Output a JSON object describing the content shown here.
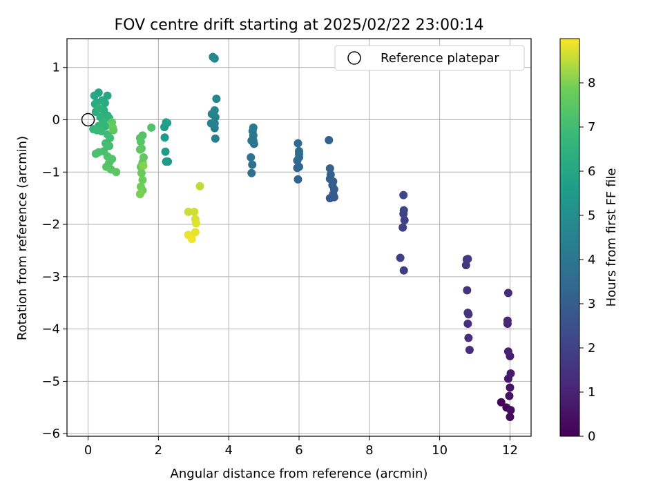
{
  "chart_data": {
    "type": "scatter",
    "title": "FOV centre drift starting at 2025/02/22 23:00:14",
    "xlabel": "Angular distance from reference (arcmin)",
    "ylabel": "Rotation from reference (arcmin)",
    "xlim": [
      -0.6,
      12.6
    ],
    "ylim": [
      -6.05,
      1.55
    ],
    "xticks": [
      0,
      2,
      4,
      6,
      8,
      10,
      12
    ],
    "yticks": [
      1,
      0,
      -1,
      -2,
      -3,
      -4,
      -5,
      -6
    ],
    "xtick_labels": [
      "0",
      "2",
      "4",
      "6",
      "8",
      "10",
      "12"
    ],
    "ytick_labels": [
      "1",
      "0",
      "−1",
      "−2",
      "−3",
      "−4",
      "−5",
      "−6"
    ],
    "grid": true,
    "legend": {
      "position": "top-right",
      "entries": [
        "Reference platepar"
      ]
    },
    "colorbar": {
      "label": "Hours from first FF file",
      "range": [
        0,
        9.0
      ],
      "ticks": [
        0,
        1,
        2,
        3,
        4,
        5,
        6,
        7,
        8
      ],
      "tick_labels": [
        "0",
        "1",
        "2",
        "3",
        "4",
        "5",
        "6",
        "7",
        "8"
      ],
      "colormap": "viridis"
    },
    "reference_point": {
      "x": 0,
      "y": 0,
      "label": "Reference platepar"
    },
    "points": [
      {
        "x": 11.75,
        "y": -5.4,
        "h": 0.05
      },
      {
        "x": 11.9,
        "y": -5.5,
        "h": 0.15
      },
      {
        "x": 12.0,
        "y": -5.68,
        "h": 0.25
      },
      {
        "x": 12.02,
        "y": -5.55,
        "h": 0.35
      },
      {
        "x": 11.98,
        "y": -5.28,
        "h": 0.45
      },
      {
        "x": 12.0,
        "y": -5.12,
        "h": 0.55
      },
      {
        "x": 11.95,
        "y": -4.95,
        "h": 0.65
      },
      {
        "x": 12.02,
        "y": -4.85,
        "h": 0.75
      },
      {
        "x": 12.0,
        "y": -4.52,
        "h": 0.85
      },
      {
        "x": 11.95,
        "y": -4.43,
        "h": 0.95
      },
      {
        "x": 11.93,
        "y": -3.9,
        "h": 1.05
      },
      {
        "x": 11.93,
        "y": -3.84,
        "h": 1.15
      },
      {
        "x": 11.95,
        "y": -3.31,
        "h": 1.25
      },
      {
        "x": 10.85,
        "y": -4.4,
        "h": 1.3
      },
      {
        "x": 10.82,
        "y": -4.17,
        "h": 1.35
      },
      {
        "x": 10.8,
        "y": -3.9,
        "h": 1.4
      },
      {
        "x": 10.82,
        "y": -3.72,
        "h": 1.45
      },
      {
        "x": 10.8,
        "y": -3.69,
        "h": 1.5
      },
      {
        "x": 10.78,
        "y": -3.26,
        "h": 1.55
      },
      {
        "x": 10.75,
        "y": -2.78,
        "h": 1.6
      },
      {
        "x": 10.77,
        "y": -2.67,
        "h": 1.65
      },
      {
        "x": 10.8,
        "y": -2.66,
        "h": 1.7
      },
      {
        "x": 8.98,
        "y": -2.88,
        "h": 1.85
      },
      {
        "x": 8.88,
        "y": -2.64,
        "h": 1.9
      },
      {
        "x": 8.95,
        "y": -2.06,
        "h": 1.95
      },
      {
        "x": 9.0,
        "y": -1.92,
        "h": 2.0
      },
      {
        "x": 8.97,
        "y": -1.8,
        "h": 2.05
      },
      {
        "x": 8.98,
        "y": -1.73,
        "h": 2.1
      },
      {
        "x": 8.97,
        "y": -1.44,
        "h": 2.15
      },
      {
        "x": 6.88,
        "y": -1.5,
        "h": 2.75
      },
      {
        "x": 7.0,
        "y": -1.48,
        "h": 2.8
      },
      {
        "x": 6.97,
        "y": -1.42,
        "h": 2.85
      },
      {
        "x": 7.0,
        "y": -1.33,
        "h": 2.9
      },
      {
        "x": 6.95,
        "y": -1.25,
        "h": 2.95
      },
      {
        "x": 6.97,
        "y": -1.18,
        "h": 3.0
      },
      {
        "x": 6.88,
        "y": -1.13,
        "h": 3.05
      },
      {
        "x": 6.9,
        "y": -1.05,
        "h": 3.1
      },
      {
        "x": 6.88,
        "y": -0.93,
        "h": 3.15
      },
      {
        "x": 6.85,
        "y": -0.39,
        "h": 3.2
      },
      {
        "x": 5.97,
        "y": -1.14,
        "h": 3.25
      },
      {
        "x": 5.95,
        "y": -0.92,
        "h": 3.3
      },
      {
        "x": 6.0,
        "y": -0.9,
        "h": 3.35
      },
      {
        "x": 5.95,
        "y": -0.78,
        "h": 3.4
      },
      {
        "x": 6.0,
        "y": -0.72,
        "h": 3.45
      },
      {
        "x": 6.0,
        "y": -0.65,
        "h": 3.5
      },
      {
        "x": 6.0,
        "y": -0.6,
        "h": 3.55
      },
      {
        "x": 5.97,
        "y": -0.45,
        "h": 3.6
      },
      {
        "x": 4.65,
        "y": -1.02,
        "h": 3.7
      },
      {
        "x": 4.67,
        "y": -0.86,
        "h": 3.75
      },
      {
        "x": 4.63,
        "y": -0.72,
        "h": 3.8
      },
      {
        "x": 4.72,
        "y": -0.46,
        "h": 3.85
      },
      {
        "x": 4.7,
        "y": -0.4,
        "h": 3.9
      },
      {
        "x": 4.65,
        "y": -0.4,
        "h": 3.95
      },
      {
        "x": 4.7,
        "y": -0.3,
        "h": 4.0
      },
      {
        "x": 4.68,
        "y": -0.22,
        "h": 4.05
      },
      {
        "x": 4.7,
        "y": -0.15,
        "h": 4.1
      },
      {
        "x": 3.62,
        "y": -0.36,
        "h": 4.3
      },
      {
        "x": 3.6,
        "y": -0.16,
        "h": 4.35
      },
      {
        "x": 3.6,
        "y": -0.07,
        "h": 4.4
      },
      {
        "x": 3.5,
        "y": -0.07,
        "h": 4.45
      },
      {
        "x": 3.62,
        "y": 0.05,
        "h": 4.5
      },
      {
        "x": 3.52,
        "y": 0.11,
        "h": 4.55
      },
      {
        "x": 3.6,
        "y": 0.18,
        "h": 4.6
      },
      {
        "x": 3.65,
        "y": 0.4,
        "h": 4.65
      },
      {
        "x": 3.55,
        "y": 1.2,
        "h": 4.7
      },
      {
        "x": 3.6,
        "y": 1.17,
        "h": 4.75
      },
      {
        "x": 2.22,
        "y": -0.8,
        "h": 5.4
      },
      {
        "x": 2.27,
        "y": -0.8,
        "h": 5.45
      },
      {
        "x": 2.2,
        "y": -0.61,
        "h": 5.5
      },
      {
        "x": 2.18,
        "y": -0.34,
        "h": 5.55
      },
      {
        "x": 2.17,
        "y": -0.14,
        "h": 5.6
      },
      {
        "x": 2.25,
        "y": -0.06,
        "h": 5.65
      },
      {
        "x": 2.22,
        "y": -0.05,
        "h": 5.7
      },
      {
        "x": 0.3,
        "y": 0.52,
        "h": 5.95
      },
      {
        "x": 0.55,
        "y": 0.46,
        "h": 6.0
      },
      {
        "x": 0.18,
        "y": 0.46,
        "h": 6.05
      },
      {
        "x": 0.4,
        "y": 0.37,
        "h": 6.1
      },
      {
        "x": 0.25,
        "y": 0.33,
        "h": 6.15
      },
      {
        "x": 0.2,
        "y": 0.3,
        "h": 6.2
      },
      {
        "x": 0.48,
        "y": 0.32,
        "h": 6.25
      },
      {
        "x": 0.22,
        "y": 0.15,
        "h": 6.3
      },
      {
        "x": 0.45,
        "y": 0.18,
        "h": 6.35
      },
      {
        "x": 0.55,
        "y": 0.08,
        "h": 6.4
      },
      {
        "x": 0.3,
        "y": 0.22,
        "h": 6.45
      },
      {
        "x": 0.35,
        "y": 0.05,
        "h": 6.5
      },
      {
        "x": 0.6,
        "y": 0.03,
        "h": 6.55
      },
      {
        "x": 0.42,
        "y": -0.05,
        "h": 6.6
      },
      {
        "x": 0.5,
        "y": -0.12,
        "h": 6.65
      },
      {
        "x": 0.3,
        "y": -0.12,
        "h": 6.7
      },
      {
        "x": 0.15,
        "y": -0.18,
        "h": 6.75
      },
      {
        "x": 0.25,
        "y": -0.2,
        "h": 6.8
      },
      {
        "x": 0.38,
        "y": -0.22,
        "h": 6.85
      },
      {
        "x": 0.55,
        "y": -0.28,
        "h": 6.9
      },
      {
        "x": 0.62,
        "y": -0.35,
        "h": 6.95
      },
      {
        "x": 0.5,
        "y": -0.45,
        "h": 7.0
      },
      {
        "x": 0.6,
        "y": -0.5,
        "h": 7.05
      },
      {
        "x": 0.45,
        "y": -0.6,
        "h": 7.1
      },
      {
        "x": 0.3,
        "y": -0.62,
        "h": 7.15
      },
      {
        "x": 0.22,
        "y": -0.65,
        "h": 7.2
      },
      {
        "x": 0.55,
        "y": -0.7,
        "h": 7.25
      },
      {
        "x": 0.68,
        "y": -0.75,
        "h": 7.3
      },
      {
        "x": 0.6,
        "y": -0.82,
        "h": 7.35
      },
      {
        "x": 0.52,
        "y": -0.9,
        "h": 7.4
      },
      {
        "x": 0.65,
        "y": -0.95,
        "h": 7.45
      },
      {
        "x": 0.8,
        "y": -1.0,
        "h": 7.5
      },
      {
        "x": 0.72,
        "y": -0.2,
        "h": 7.55
      },
      {
        "x": 0.68,
        "y": -0.05,
        "h": 7.6
      },
      {
        "x": 0.7,
        "y": -0.15,
        "h": 7.65
      },
      {
        "x": 1.8,
        "y": -0.15,
        "h": 7.3
      },
      {
        "x": 1.55,
        "y": -0.3,
        "h": 7.35
      },
      {
        "x": 1.48,
        "y": -0.35,
        "h": 7.4
      },
      {
        "x": 1.5,
        "y": -0.42,
        "h": 7.45
      },
      {
        "x": 1.52,
        "y": -0.55,
        "h": 7.5
      },
      {
        "x": 1.48,
        "y": -0.57,
        "h": 7.55
      },
      {
        "x": 1.58,
        "y": -0.72,
        "h": 7.6
      },
      {
        "x": 1.55,
        "y": -0.82,
        "h": 7.65
      },
      {
        "x": 1.5,
        "y": -0.9,
        "h": 7.7
      },
      {
        "x": 1.52,
        "y": -1.02,
        "h": 7.75
      },
      {
        "x": 1.55,
        "y": -1.15,
        "h": 7.8
      },
      {
        "x": 1.5,
        "y": -1.28,
        "h": 7.85
      },
      {
        "x": 1.55,
        "y": -1.35,
        "h": 7.9
      },
      {
        "x": 1.48,
        "y": -1.42,
        "h": 7.95
      },
      {
        "x": 1.57,
        "y": -0.88,
        "h": 8.05
      },
      {
        "x": 3.18,
        "y": -1.27,
        "h": 8.5
      },
      {
        "x": 2.85,
        "y": -1.76,
        "h": 8.6
      },
      {
        "x": 3.02,
        "y": -1.76,
        "h": 8.65
      },
      {
        "x": 3.05,
        "y": -1.9,
        "h": 8.7
      },
      {
        "x": 3.07,
        "y": -1.98,
        "h": 8.75
      },
      {
        "x": 3.05,
        "y": -2.15,
        "h": 8.8
      },
      {
        "x": 2.85,
        "y": -2.2,
        "h": 8.85
      },
      {
        "x": 2.95,
        "y": -2.28,
        "h": 8.9
      }
    ]
  }
}
